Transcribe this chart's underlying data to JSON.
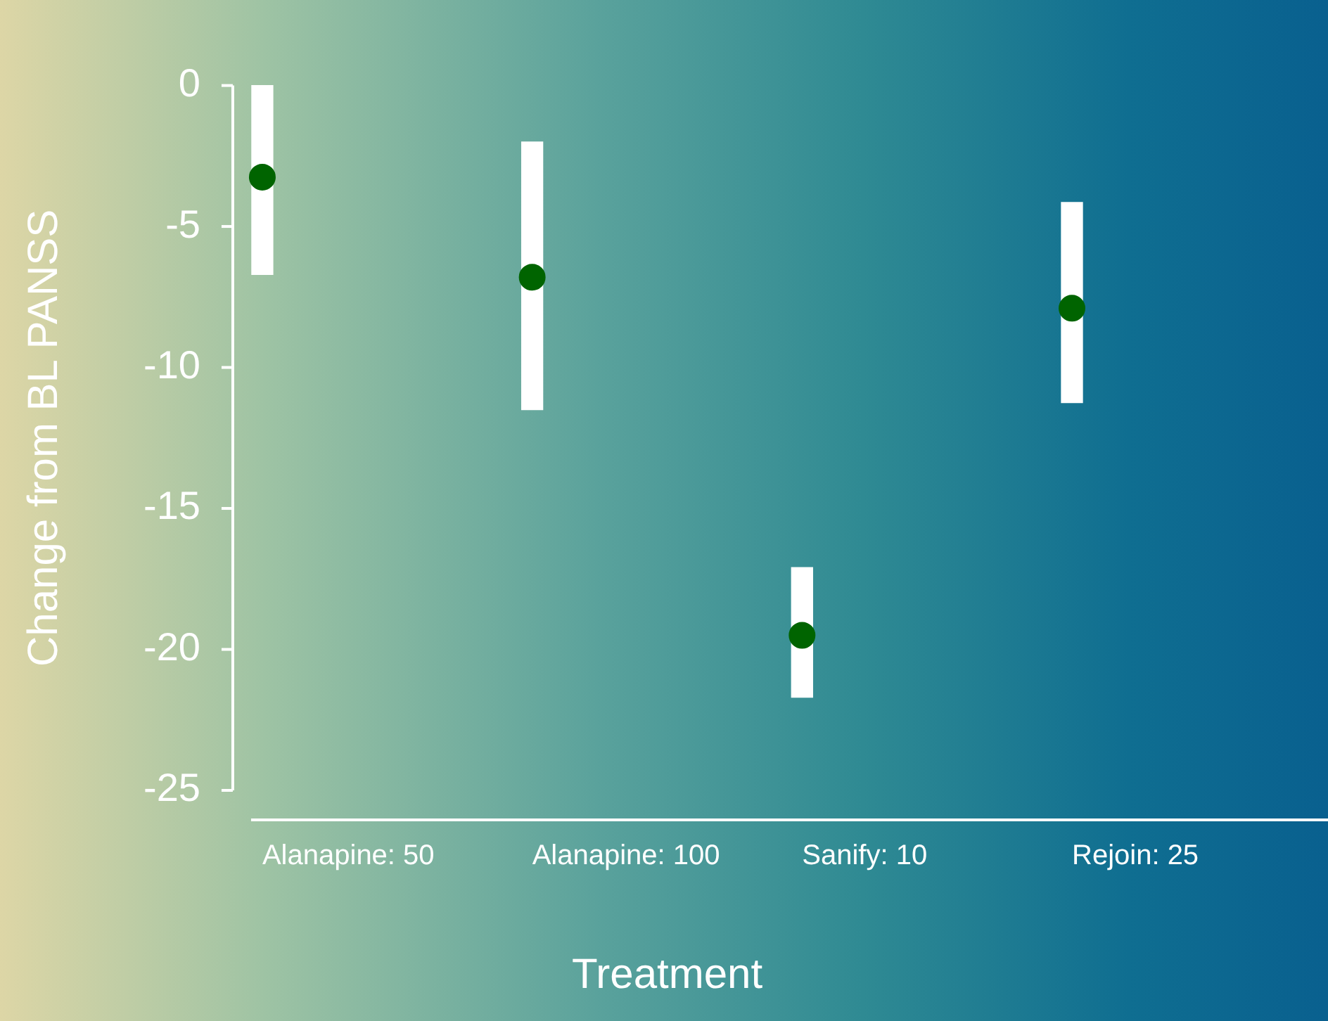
{
  "chart_data": {
    "type": "bar",
    "xlabel": "Treatment",
    "ylabel": "Change from BL PANSS",
    "categories": [
      "Alanapine: 50",
      "Alanapine: 100",
      "Sanify: 10",
      "Rejoin: 25"
    ],
    "ylim": [
      -25,
      0
    ],
    "yticks": [
      -25,
      -20,
      -15,
      -10,
      -5,
      0
    ],
    "grid": false,
    "legend": false,
    "series": [
      {
        "color": "#ffffff",
        "base": [
          -6.7,
          -11.5,
          -21.7,
          -11.25
        ],
        "values": [
          6.7,
          9.5,
          4.6,
          7.1
        ]
      },
      {
        "type": "scatter",
        "color": "#006400",
        "marker": "circle",
        "x": [
          "Alanapine: 50",
          "Alanapine: 100",
          "Sanify: 10",
          "Rejoin: 25"
        ],
        "values": [
          -3.25,
          -6.8,
          -19.5,
          -7.9
        ]
      }
    ]
  }
}
